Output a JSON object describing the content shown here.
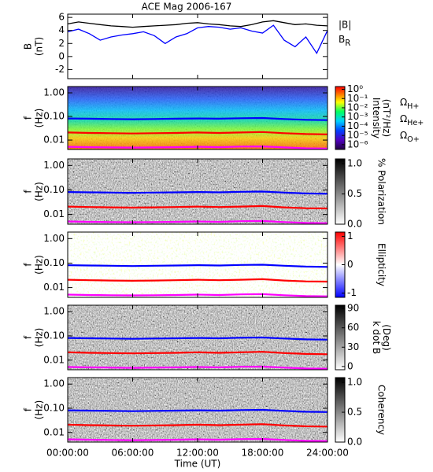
{
  "chart_data": [
    {
      "type": "line",
      "title": "ACE Mag 2006-167",
      "ylabel": [
        "B",
        "(nT)"
      ],
      "ylim": [
        -3.4,
        6.5
      ],
      "yticks": [
        6,
        4,
        2,
        0,
        -2
      ],
      "x": [
        0,
        1,
        2,
        3,
        4,
        5,
        6,
        7,
        8,
        9,
        10,
        11,
        12,
        13,
        14,
        15,
        16,
        17,
        18,
        19,
        20,
        21,
        22,
        23,
        24
      ],
      "series": [
        {
          "name": "|B|",
          "color": "#000000",
          "values": [
            5.0,
            5.3,
            5.1,
            4.9,
            4.7,
            4.6,
            4.5,
            4.6,
            4.7,
            4.8,
            4.9,
            5.1,
            5.2,
            5.0,
            4.9,
            4.7,
            4.6,
            4.9,
            5.3,
            5.5,
            5.2,
            4.9,
            5.0,
            4.8,
            4.7
          ]
        },
        {
          "name": "BR",
          "color": "#0000ff",
          "values": [
            3.8,
            4.2,
            3.5,
            2.5,
            3.0,
            3.3,
            3.5,
            3.8,
            3.2,
            2.0,
            3.0,
            3.5,
            4.4,
            4.6,
            4.5,
            4.2,
            4.4,
            3.9,
            3.6,
            4.8,
            2.5,
            1.5,
            3.0,
            0.5,
            4.0
          ]
        }
      ]
    },
    {
      "type": "spectrogram",
      "ylabel": [
        "f",
        "(Hz)"
      ],
      "ylog": true,
      "ylim": [
        0.004,
        1.85
      ],
      "yticks": [
        {
          "value": 1,
          "label": "1.00"
        },
        {
          "value": 0.1,
          "label": "0.10"
        },
        0.01
      ],
      "colorbar": {
        "label": [
          "Intensity",
          "(nT²/Hz)"
        ],
        "log": true,
        "lim": [
          3e-07,
          2
        ],
        "ticks": [
          {
            "value": 1,
            "label": "10⁰"
          },
          {
            "value": 0.1,
            "label": "10⁻¹"
          },
          {
            "value": 0.01,
            "label": "10⁻²"
          },
          {
            "value": 0.001,
            "label": "10⁻³"
          },
          {
            "value": 0.0001,
            "label": "10⁻⁴"
          },
          {
            "value": 1e-05,
            "label": "10⁻⁵"
          },
          {
            "value": 1e-06,
            "label": "10⁻⁶"
          }
        ]
      },
      "x": [
        0,
        2,
        4,
        6,
        8,
        10,
        12,
        14,
        16,
        18,
        20,
        22,
        24
      ],
      "series": [
        {
          "name": "ΩH+",
          "color": "#0000ff",
          "values": [
            0.082,
            0.08,
            0.078,
            0.076,
            0.078,
            0.08,
            0.082,
            0.08,
            0.084,
            0.086,
            0.078,
            0.072,
            0.07
          ]
        },
        {
          "name": "ΩHe+",
          "color": "#ff0000",
          "values": [
            0.021,
            0.02,
            0.0195,
            0.019,
            0.0195,
            0.02,
            0.021,
            0.02,
            0.021,
            0.022,
            0.0195,
            0.018,
            0.0175
          ]
        },
        {
          "name": "ΩO+",
          "color": "#ff00ff",
          "values": [
            0.0052,
            0.005,
            0.0049,
            0.0048,
            0.0049,
            0.005,
            0.0052,
            0.005,
            0.0053,
            0.0054,
            0.0049,
            0.0045,
            0.0044
          ]
        }
      ]
    },
    {
      "type": "spectrogram",
      "ylabel": [
        "f",
        "(Hz)"
      ],
      "ylog": true,
      "ylim": [
        0.004,
        1.85
      ],
      "yticks": [
        {
          "value": 1,
          "label": "1.00"
        },
        {
          "value": 0.1,
          "label": "0.10"
        },
        0.01
      ],
      "colorbar": {
        "label": [
          "% Polarization"
        ],
        "lim": [
          0,
          1.08
        ],
        "ticks": [
          {
            "value": 0,
            "label": "0.0"
          },
          0.5,
          {
            "value": 1,
            "label": "1.0"
          }
        ]
      }
    },
    {
      "type": "spectrogram",
      "ylabel": [
        "f",
        "(Hz)"
      ],
      "ylog": true,
      "ylim": [
        0.004,
        1.85
      ],
      "yticks": [
        {
          "value": 1,
          "label": "1.00"
        },
        {
          "value": 0.1,
          "label": "0.10"
        },
        0.01
      ],
      "colorbar": {
        "label": [
          "Ellipticity"
        ],
        "lim": [
          -1.15,
          1.15
        ],
        "ticks": [
          1,
          0,
          -1
        ]
      }
    },
    {
      "type": "spectrogram",
      "ylabel": [
        "f",
        "(Hz)"
      ],
      "ylog": true,
      "ylim": [
        0.004,
        1.85
      ],
      "yticks": [
        {
          "value": 1,
          "label": "1.00"
        },
        {
          "value": 0.1,
          "label": "0.10"
        },
        0.01
      ],
      "colorbar": {
        "label": [
          "k dot B",
          "(Deg)"
        ],
        "lim": [
          -5,
          95
        ],
        "ticks": [
          0,
          30,
          60,
          90
        ]
      }
    },
    {
      "type": "spectrogram",
      "ylabel": [
        "f",
        "(Hz)"
      ],
      "ylog": true,
      "ylim": [
        0.004,
        1.85
      ],
      "yticks": [
        {
          "value": 1,
          "label": "1.00"
        },
        {
          "value": 0.1,
          "label": "0.10"
        },
        0.01
      ],
      "colorbar": {
        "label": [
          "Coherency"
        ],
        "lim": [
          0,
          1.08
        ],
        "ticks": [
          {
            "value": 0,
            "label": "0.0"
          },
          0.5,
          {
            "value": 1,
            "label": "1.0"
          }
        ]
      },
      "xlabel": "Time (UT)",
      "xlim": [
        0,
        24
      ],
      "xticks": [
        {
          "value": 0,
          "label": "00:00:00"
        },
        {
          "value": 6,
          "label": "06:00:00"
        },
        {
          "value": 12,
          "label": "12:00:00"
        },
        {
          "value": 18,
          "label": "18:00:00"
        },
        {
          "value": 24,
          "label": "24:00:00"
        }
      ]
    }
  ]
}
